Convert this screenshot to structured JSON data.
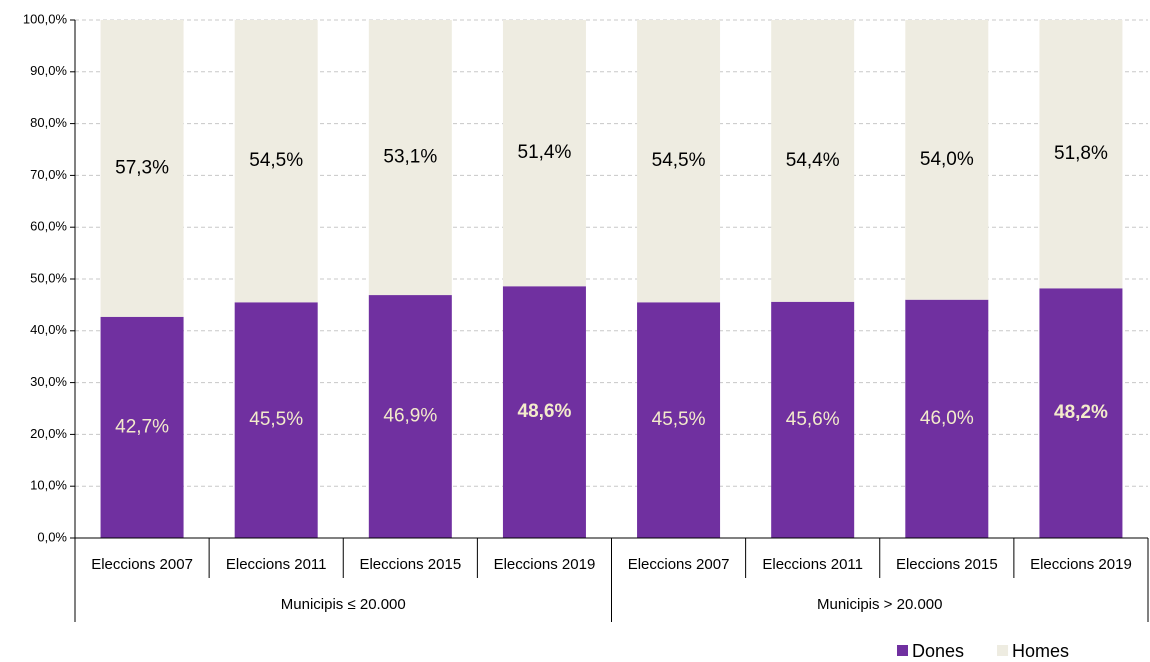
{
  "chart_data": {
    "type": "stacked_bar",
    "category_groups": [
      {
        "label": "Municipis ≤ 20.000",
        "categories": [
          "Eleccions 2007",
          "Eleccions 2011",
          "Eleccions 2015",
          "Eleccions 2019"
        ]
      },
      {
        "label": "Municipis > 20.000",
        "categories": [
          "Eleccions 2007",
          "Eleccions 2011",
          "Eleccions 2015",
          "Eleccions 2019"
        ]
      }
    ],
    "series": [
      {
        "name": "Dones",
        "color": "#7030a0",
        "label_color": "#f3ebcb",
        "values": [
          42.7,
          45.5,
          46.9,
          48.6,
          45.5,
          45.6,
          46.0,
          48.2
        ],
        "value_labels": [
          "42,7%",
          "45,5%",
          "46,9%",
          "48,6%",
          "45,5%",
          "45,6%",
          "46,0%",
          "48,2%"
        ],
        "label_bold": [
          false,
          false,
          false,
          true,
          false,
          false,
          false,
          true
        ]
      },
      {
        "name": "Homes",
        "color": "#eeece1",
        "label_color": "#000000",
        "values": [
          57.3,
          54.5,
          53.1,
          51.4,
          54.5,
          54.4,
          54.0,
          51.8
        ],
        "value_labels": [
          "57,3%",
          "54,5%",
          "53,1%",
          "51,4%",
          "54,5%",
          "54,4%",
          "54,0%",
          "51,8%"
        ],
        "label_bold": [
          false,
          false,
          false,
          false,
          false,
          false,
          false,
          false
        ]
      }
    ],
    "ylim": [
      0,
      100
    ],
    "yticks": [
      {
        "value": 0,
        "label": "0,0%"
      },
      {
        "value": 10,
        "label": "10,0%"
      },
      {
        "value": 20,
        "label": "20,0%"
      },
      {
        "value": 30,
        "label": "30,0%"
      },
      {
        "value": 40,
        "label": "40,0%"
      },
      {
        "value": 50,
        "label": "50,0%"
      },
      {
        "value": 60,
        "label": "60,0%"
      },
      {
        "value": 70,
        "label": "70,0%"
      },
      {
        "value": 80,
        "label": "80,0%"
      },
      {
        "value": 90,
        "label": "90,0%"
      },
      {
        "value": 100,
        "label": "100,0%"
      }
    ],
    "grid": true,
    "legend": "bottom-right"
  }
}
